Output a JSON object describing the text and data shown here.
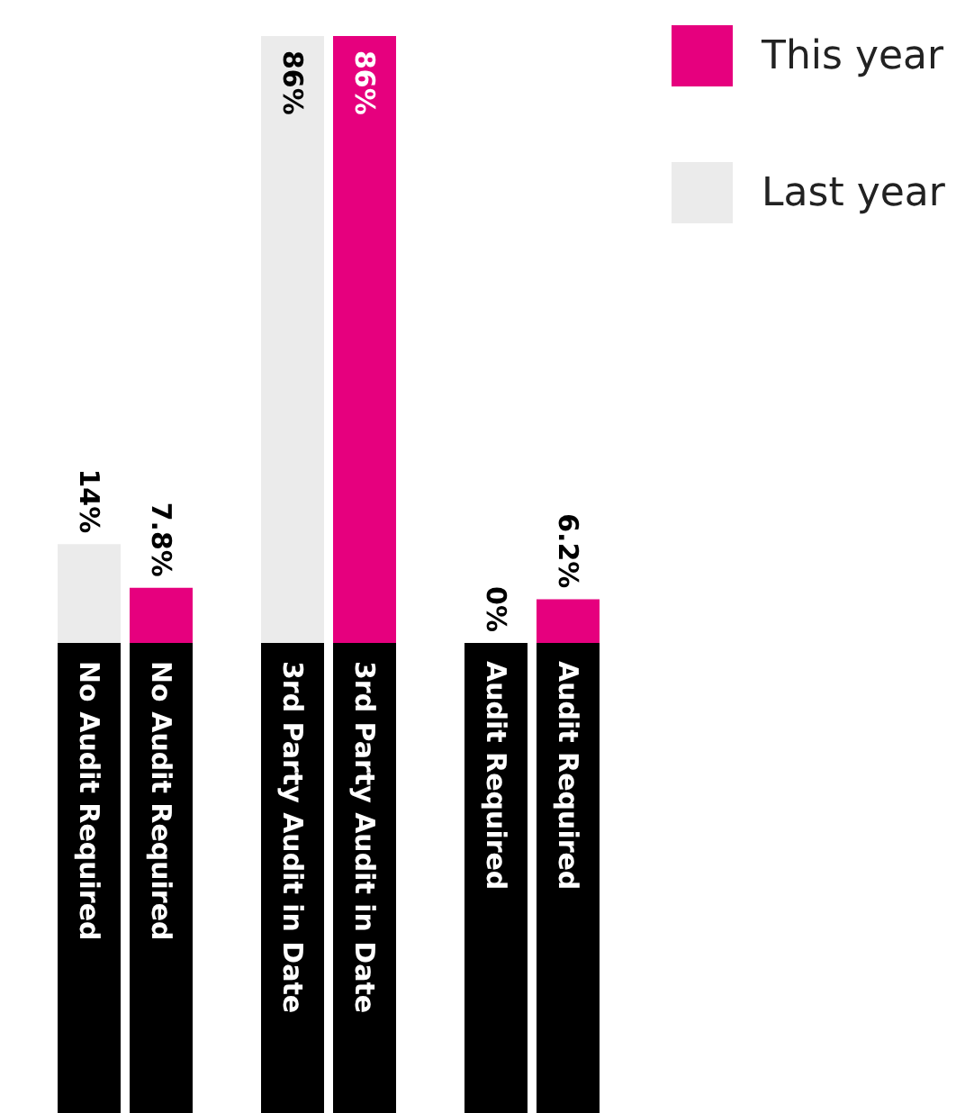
{
  "chart_data": {
    "type": "bar",
    "categories": [
      "No Audit Required",
      "3rd Party Audit in Date",
      "Audit Required"
    ],
    "series": [
      {
        "name": "Last year",
        "color": "#ebebeb",
        "values": [
          14,
          86,
          0
        ],
        "value_labels": [
          "14%",
          "86%",
          "0%"
        ]
      },
      {
        "name": "This year",
        "color": "#e6007e",
        "values": [
          7.8,
          86,
          6.2
        ],
        "value_labels": [
          "7.8%",
          "86%",
          "6.2%"
        ]
      }
    ],
    "legend": "top right"
  }
}
